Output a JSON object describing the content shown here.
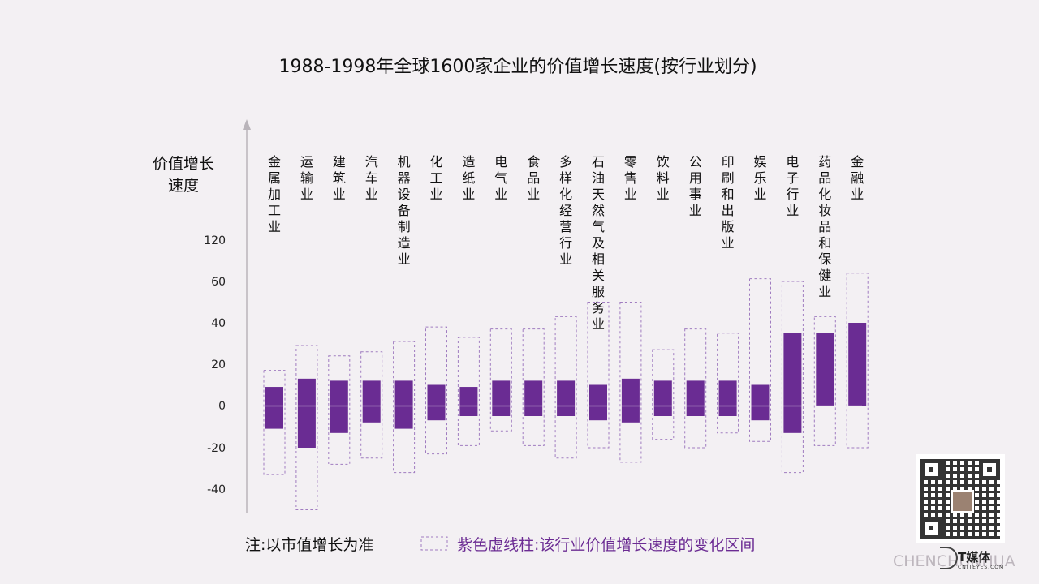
{
  "chart_data": {
    "type": "bar",
    "title": "1988-1998年全球1600家企业的价值增长速度(按行业划分)",
    "ylabel_lines": [
      "价值增长",
      "速度"
    ],
    "yticks": [
      120,
      60,
      40,
      20,
      0,
      -20,
      -40
    ],
    "categories": [
      "金属加工业",
      "运输业",
      "建筑业",
      "汽车业",
      "机器设备制造业",
      "化工业",
      "造纸业",
      "电气业",
      "食品业",
      "多样化经营行业",
      "石油天然气及相关服务业",
      "零售业",
      "饮料业",
      "公用事业",
      "印刷和出版业",
      "娱乐业",
      "电子行业",
      "药品化妆品和保健业",
      "金融业"
    ],
    "series": [
      {
        "type": "solid-bar",
        "low": [
          -11,
          -20,
          -13,
          -8,
          -11,
          -7,
          -5,
          -5,
          -5,
          -5,
          -7,
          -8,
          -5,
          -5,
          -5,
          -7,
          -13,
          0,
          0
        ],
        "high": [
          9,
          13,
          12,
          12,
          12,
          10,
          9,
          12,
          12,
          12,
          10,
          13,
          12,
          12,
          12,
          10,
          35,
          35,
          40
        ]
      },
      {
        "type": "dashed-range",
        "low": [
          -33,
          -50,
          -28,
          -25,
          -32,
          -23,
          -19,
          -12,
          -19,
          -25,
          -20,
          -27,
          -16,
          -20,
          -13,
          -17,
          -32,
          -19,
          -20
        ],
        "high": [
          17,
          29,
          24,
          26,
          31,
          38,
          33,
          37,
          37,
          43,
          50,
          50,
          27,
          37,
          35,
          64,
          60,
          43,
          72
        ]
      }
    ],
    "note": "注:以市值增长为准",
    "legend": "紫色虚线柱:该行业价值增长速度的变化区间",
    "colors": {
      "bar": "#6a2c93",
      "range": "#a07cc0",
      "axis": "#b9b4ba"
    }
  },
  "watermark": "CHENCHUNHUA",
  "brand": {
    "name": "T媒体",
    "sub": "CNITEYES.COM"
  },
  "qr_label": "qr-code"
}
